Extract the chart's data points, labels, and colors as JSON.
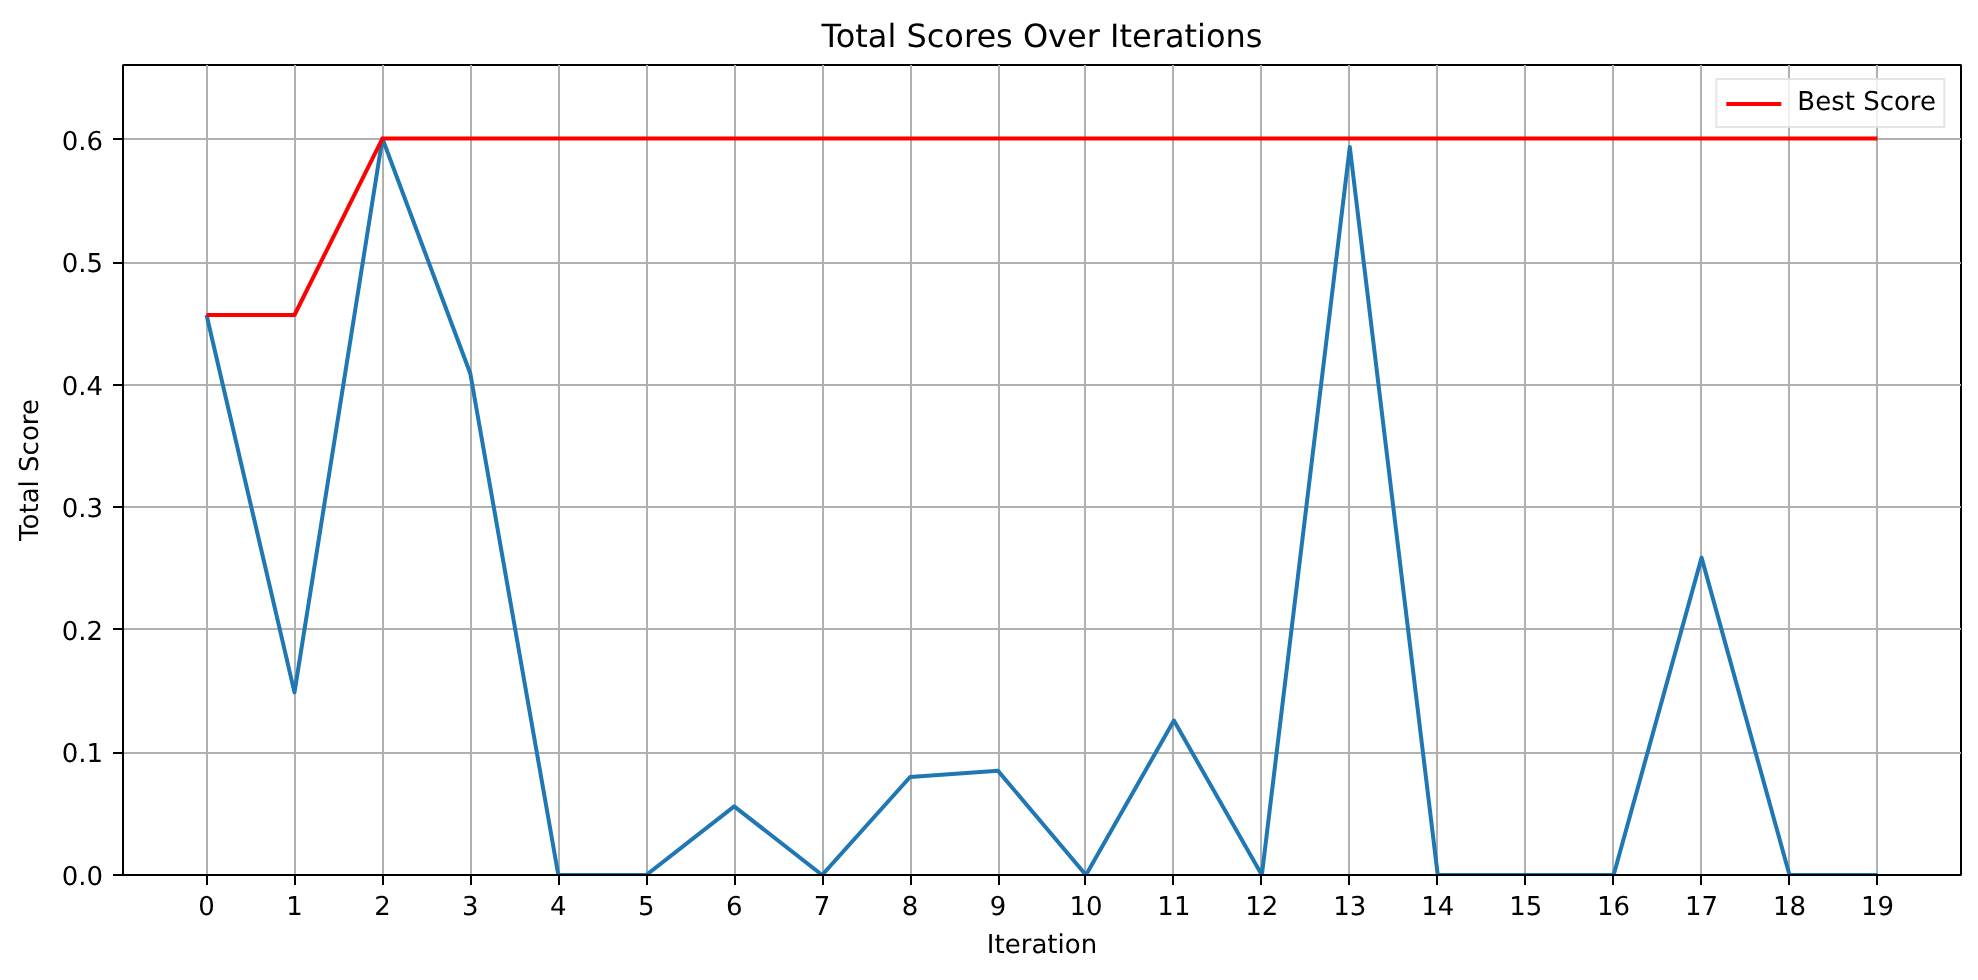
{
  "chart_data": {
    "type": "line",
    "title": "Total Scores Over Iterations",
    "xlabel": "Iteration",
    "ylabel": "Total Score",
    "x": [
      0,
      1,
      2,
      3,
      4,
      5,
      6,
      7,
      8,
      9,
      10,
      11,
      12,
      13,
      14,
      15,
      16,
      17,
      18,
      19
    ],
    "series": [
      {
        "color": "#1f77b4",
        "values": [
          0.457,
          0.149,
          0.601,
          0.409,
          0,
          0,
          0.056,
          0,
          0.08,
          0.085,
          0,
          0.126,
          0,
          0.594,
          0,
          0,
          0,
          0.259,
          0,
          0
        ]
      },
      {
        "name": "Best Score",
        "color": "#ff0000",
        "values": [
          0.457,
          0.457,
          0.601,
          0.601,
          0.601,
          0.601,
          0.601,
          0.601,
          0.601,
          0.601,
          0.601,
          0.601,
          0.601,
          0.601,
          0.601,
          0.601,
          0.601,
          0.601,
          0.601,
          0.601
        ]
      }
    ],
    "xlim": [
      -0.95,
      19.95
    ],
    "ylim": [
      0,
      0.661
    ],
    "xticks": [
      0,
      1,
      2,
      3,
      4,
      5,
      6,
      7,
      8,
      9,
      10,
      11,
      12,
      13,
      14,
      15,
      16,
      17,
      18,
      19
    ],
    "yticks": [
      {
        "value": 0,
        "label": "0.0"
      },
      0.1,
      0.2,
      0.3,
      0.4,
      0.5,
      0.6
    ],
    "grid": true,
    "legend": "top right"
  }
}
